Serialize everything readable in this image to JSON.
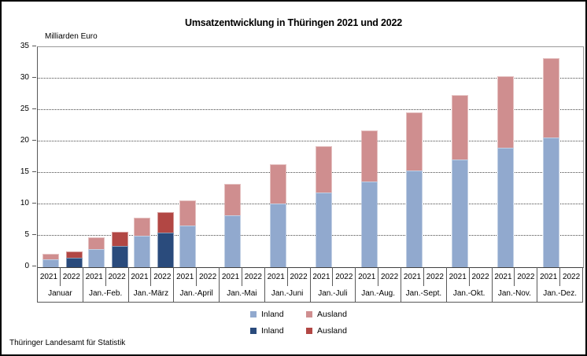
{
  "title": "Umsatzentwicklung in Thüringen 2021 und 2022",
  "unit_label": "Milliarden Euro",
  "source": "Thüringer Landesamt für Statistik",
  "colors": {
    "inland_2021": "#91A9CE",
    "ausland_2021": "#CF8E8F",
    "inland_2022": "#2A4B7C",
    "ausland_2022": "#B24744",
    "axis": "#595959",
    "grid": "#4a4a4a"
  },
  "chart_data": {
    "type": "bar",
    "stacked": true,
    "title": "Umsatzentwicklung in Thüringen 2021 und 2022",
    "xlabel": "",
    "ylabel": "Milliarden Euro",
    "ylim": [
      0,
      35
    ],
    "ytick_step": 5,
    "grid": "horizontal dotted lines every 5 units",
    "legend_position": "bottom",
    "categories": [
      "Januar",
      "Jan.-Feb.",
      "Jan.-März",
      "Jan.-April",
      "Jan.-Mai",
      "Jan.-Juni",
      "Jan.-Juli",
      "Jan.-Aug.",
      "Jan.-Sept.",
      "Jan.-Okt.",
      "Jan.-Nov.",
      "Jan.-Dez."
    ],
    "sub_categories": [
      "2021",
      "2022"
    ],
    "series": [
      {
        "name": "Inland",
        "year": "2021",
        "color": "#91A9CE",
        "values": [
          1.3,
          2.9,
          5.0,
          6.6,
          8.3,
          10.1,
          11.9,
          13.6,
          15.4,
          17.1,
          19.0,
          20.6
        ]
      },
      {
        "name": "Ausland",
        "year": "2021",
        "color": "#CF8E8F",
        "values": [
          0.8,
          1.9,
          2.9,
          4.0,
          5.0,
          6.3,
          7.3,
          8.2,
          9.2,
          10.3,
          11.4,
          12.6
        ]
      },
      {
        "name": "Inland",
        "year": "2022",
        "color": "#2A4B7C",
        "values": [
          1.5,
          3.4,
          5.5,
          null,
          null,
          null,
          null,
          null,
          null,
          null,
          null,
          null
        ]
      },
      {
        "name": "Ausland",
        "year": "2022",
        "color": "#B24744",
        "values": [
          1.0,
          2.2,
          3.3,
          null,
          null,
          null,
          null,
          null,
          null,
          null,
          null,
          null
        ]
      }
    ],
    "legend_rows": [
      [
        {
          "label": "Inland",
          "color": "#91A9CE"
        },
        {
          "label": "Ausland",
          "color": "#CF8E8F"
        }
      ],
      [
        {
          "label": "Inland",
          "color": "#2A4B7C"
        },
        {
          "label": "Ausland",
          "color": "#B24744"
        }
      ]
    ]
  }
}
